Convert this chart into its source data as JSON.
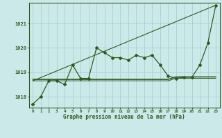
{
  "title": "Graphe pression niveau de la mer (hPa)",
  "bg_color": "#cce9e9",
  "grid_color": "#aad4d4",
  "line_color": "#2d5a1e",
  "x_ticks": [
    0,
    1,
    2,
    3,
    4,
    5,
    6,
    7,
    8,
    9,
    10,
    11,
    12,
    13,
    14,
    15,
    16,
    17,
    18,
    19,
    20,
    21,
    22,
    23
  ],
  "y_ticks": [
    1018,
    1019,
    1020,
    1021
  ],
  "ylim": [
    1017.55,
    1021.85
  ],
  "xlim": [
    -0.5,
    23.5
  ],
  "pressure": [
    1017.7,
    1018.0,
    1018.65,
    1018.65,
    1018.5,
    1019.3,
    1018.75,
    1018.75,
    1020.0,
    1019.8,
    1019.6,
    1019.6,
    1019.5,
    1019.7,
    1019.6,
    1019.7,
    1019.3,
    1018.85,
    1018.75,
    1018.8,
    1018.8,
    1019.3,
    1020.2,
    1021.75
  ],
  "flat_line1": [
    1018.65,
    1018.65,
    1018.65,
    1018.65,
    1018.65,
    1018.65,
    1018.65,
    1018.65,
    1018.65,
    1018.65,
    1018.65,
    1018.65,
    1018.65,
    1018.65,
    1018.65,
    1018.65,
    1018.65,
    1018.65,
    1018.75,
    1018.75,
    1018.75,
    1018.75,
    1018.75,
    1018.75
  ],
  "flat_line2": [
    1018.7,
    1018.7,
    1018.7,
    1018.7,
    1018.7,
    1018.7,
    1018.7,
    1018.7,
    1018.7,
    1018.7,
    1018.7,
    1018.7,
    1018.7,
    1018.7,
    1018.7,
    1018.7,
    1018.7,
    1018.7,
    1018.8,
    1018.8,
    1018.8,
    1018.8,
    1018.8,
    1018.8
  ],
  "flat_line3": [
    1018.72,
    1018.72,
    1018.72,
    1018.72,
    1018.72,
    1018.72,
    1018.72,
    1018.72,
    1018.72,
    1018.72,
    1018.72,
    1018.72,
    1018.72,
    1018.72,
    1018.72,
    1018.72,
    1018.72,
    1018.72,
    1018.82,
    1018.82,
    1018.82,
    1018.82,
    1018.82,
    1018.82
  ],
  "trend_line_x": [
    0,
    23
  ],
  "trend_line_y": [
    1018.65,
    1021.75
  ]
}
